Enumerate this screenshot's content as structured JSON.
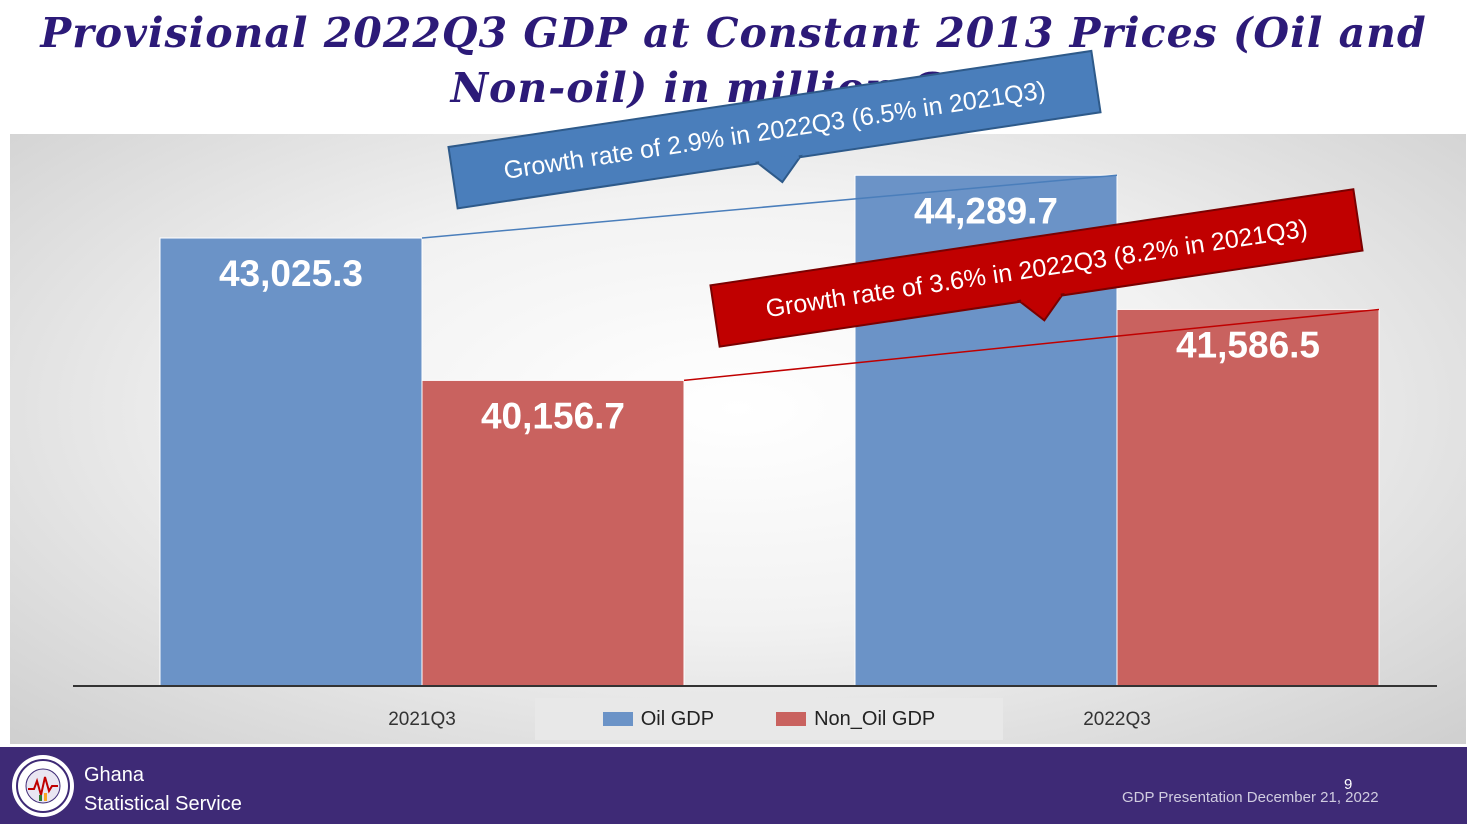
{
  "title": "Provisional 2022Q3 GDP at Constant 2013 Prices (Oil and Non-oil) in million GH₵",
  "chart_data": {
    "type": "bar",
    "categories": [
      "2021Q3",
      "2022Q3"
    ],
    "series": [
      {
        "name": "Oil GDP",
        "values": [
          43025.3,
          44289.7
        ],
        "labels": [
          "43,025.3",
          "44,289.7"
        ],
        "color": "#6b93c7"
      },
      {
        "name": "Non_Oil GDP",
        "values": [
          40156.7,
          41586.5
        ],
        "labels": [
          "40,156.7",
          "41,586.5"
        ],
        "color": "#c9625f"
      }
    ],
    "ylim": [
      34000,
      45000
    ],
    "legend": "bottom-center",
    "annotations": [
      {
        "series": "Oil GDP",
        "text": "Growth rate of 2.9% in 2022Q3  (6.5% in 2021Q3)",
        "color": "#4a7ebb",
        "border": "#2e5a8a"
      },
      {
        "series": "Non_Oil GDP",
        "text": "Growth rate of 3.6% in 2022Q3  (8.2% in 2021Q3)",
        "color": "#c00000",
        "border": "#7a0000"
      }
    ]
  },
  "footer": {
    "org_line1": "Ghana",
    "org_line2": "Statistical Service",
    "page_number": "9",
    "caption": "GDP Presentation December 21, 2022",
    "background_color": "#3e2a76"
  }
}
